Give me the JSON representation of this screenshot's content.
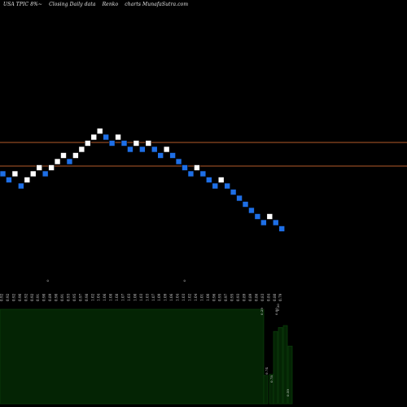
{
  "header": {
    "symbol": "USA TPIC 8%~",
    "subtitle": "Closing Daily data",
    "chart_kind": "Renko",
    "site": "charts MunafaSutra.com"
  },
  "colors": {
    "background": "#000000",
    "up_brick": "#ffffff",
    "down_brick": "#1e6fe6",
    "brick_edge": "#000000",
    "ref_line": "#b35a2a",
    "volume_fill": "#042404",
    "volume_edge": "#0c3d0c",
    "label_text": "#cfcfcf"
  },
  "chart_data": [
    {
      "type": "renko",
      "title": "USA TPIC 8%~ Closing Daily data Renko charts MunafaSutra.com",
      "brick_direction": [
        "down",
        "down",
        "up",
        "down",
        "up",
        "up",
        "up",
        "down",
        "up",
        "up",
        "up",
        "down",
        "up",
        "up",
        "up",
        "up",
        "up",
        "down",
        "down",
        "up",
        "down",
        "down",
        "up",
        "down",
        "up",
        "down",
        "down",
        "up",
        "down",
        "down",
        "down",
        "down",
        "up",
        "down",
        "down",
        "down",
        "up",
        "down",
        "down",
        "down",
        "down",
        "down",
        "down",
        "down",
        "up",
        "down",
        "down"
      ],
      "brick_levels": [
        0,
        -1,
        0,
        -2,
        -1,
        0,
        1,
        0,
        1,
        2,
        3,
        2,
        3,
        4,
        5,
        6,
        7,
        6,
        5,
        6,
        5,
        4,
        5,
        4,
        5,
        4,
        3,
        4,
        3,
        2,
        1,
        0,
        1,
        0,
        -1,
        -2,
        -1,
        -2,
        -3,
        -4,
        -5,
        -6,
        -7,
        -8,
        -7,
        -8,
        -9
      ],
      "reference_lines": [
        "upper",
        "lower"
      ]
    },
    {
      "type": "bar",
      "title": "volume panel",
      "date_labels": [
        "0.92",
        "0.92",
        "0.92",
        "0.90",
        "0.92",
        "0.92",
        "0.91",
        "0.90",
        "0.89",
        "0.90",
        "0.91",
        "0.93",
        "0.95",
        "0.97",
        "0.98",
        "1.02",
        "1.04",
        "1.06",
        "1.08",
        "1.08",
        "1.07",
        "1.03",
        "1.00",
        "1.03",
        "1.03",
        "1.07",
        "1.09",
        "1.09",
        "1.06",
        "1.04",
        "1.03",
        "1.02",
        "1.04",
        "1.01",
        "1.00",
        "0.96",
        "0.95",
        "0.97",
        "0.95",
        "0.93",
        "0.89",
        "0.89",
        "0.86",
        "0.83",
        "0.84",
        "0.80",
        "0.79"
      ],
      "markers": [
        "0",
        "0"
      ],
      "volume_labels": [
        "0.29",
        "0.30",
        "0.74",
        "0.78",
        "0.80",
        "0.59"
      ],
      "values": [
        0.29,
        0.3,
        0.74,
        0.78,
        0.8,
        0.59
      ]
    }
  ]
}
